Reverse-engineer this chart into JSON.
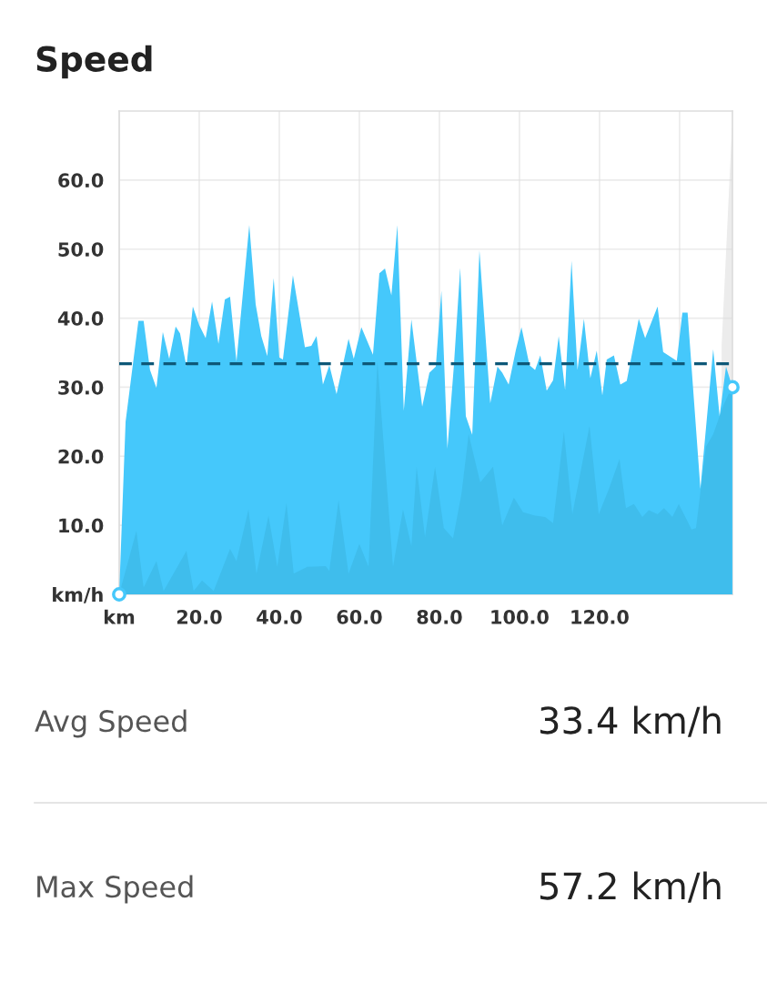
{
  "chart_data": {
    "type": "area",
    "title": "Speed",
    "xlim": [
      0,
      153.2
    ],
    "ylim": [
      0,
      70
    ],
    "xticks": [
      {
        "value": 0,
        "label": "km"
      },
      {
        "value": 20,
        "label": "20.0"
      },
      {
        "value": 40,
        "label": "40.0"
      },
      {
        "value": 60,
        "label": "60.0"
      },
      {
        "value": 80,
        "label": "80.0"
      },
      {
        "value": 100,
        "label": "100.0"
      },
      {
        "value": 120,
        "label": "120.0"
      },
      {
        "value": 140,
        "label": null
      }
    ],
    "yticks": [
      {
        "value": 0,
        "label": "km/h"
      },
      {
        "value": 10,
        "label": "10.0"
      },
      {
        "value": 20,
        "label": "20.0"
      },
      {
        "value": 30,
        "label": "30.0"
      },
      {
        "value": 40,
        "label": "40.0"
      },
      {
        "value": 50,
        "label": "50.0"
      },
      {
        "value": 60,
        "label": "60.0"
      }
    ],
    "grid": true,
    "legend": false,
    "series": [
      {
        "color": "#ececec",
        "x": [
          150.5,
          153.2
        ],
        "values": [
          36,
          69
        ]
      },
      {
        "color": "#45c8fb",
        "x": [
          0,
          1.6,
          4.8,
          6.1,
          7.7,
          9.3,
          10.9,
          12.5,
          14.1,
          15.2,
          16.8,
          18.4,
          20.0,
          21.6,
          23.2,
          24.8,
          26.4,
          27.7,
          29.3,
          32.5,
          34.1,
          35.5,
          37.0,
          38.6,
          40.0,
          40.9,
          43.4,
          46.4,
          48.0,
          49.3,
          50.9,
          52.5,
          54.3,
          57.3,
          58.6,
          60.5,
          63.4,
          65.0,
          66.4,
          68.0,
          69.5,
          71.1,
          73.0,
          75.7,
          77.5,
          79.1,
          80.5,
          82.0,
          83.6,
          85.2,
          86.6,
          88.2,
          90.0,
          92.7,
          94.5,
          95.7,
          97.3,
          99.1,
          100.5,
          102.5,
          103.9,
          105.2,
          106.8,
          108.4,
          109.8,
          111.4,
          113.0,
          114.5,
          116.1,
          117.7,
          119.3,
          120.7,
          121.8,
          123.6,
          125.2,
          126.8,
          129.8,
          131.4,
          134.5,
          135.9,
          139.3,
          140.7,
          142.0,
          145.2,
          148.4,
          150.0,
          151.6,
          153.2
        ],
        "values": [
          0,
          25,
          39.6,
          39.6,
          32.5,
          29.9,
          38,
          34.1,
          38.8,
          37.8,
          33,
          41.7,
          39,
          37.1,
          42.4,
          36.3,
          42.7,
          43.1,
          33.7,
          53.5,
          42,
          37.4,
          34.5,
          45.8,
          34.3,
          34,
          46.2,
          35.8,
          36,
          37.4,
          30.4,
          33.2,
          29,
          37,
          34.1,
          38.7,
          34.7,
          46.5,
          47.2,
          43.3,
          53.5,
          26.6,
          39.8,
          27.2,
          32.1,
          33,
          44,
          21.1,
          33,
          47.3,
          25.8,
          23.1,
          49.8,
          27.7,
          33,
          32.1,
          30.4,
          35.4,
          38.7,
          33.2,
          32.5,
          34.6,
          29.5,
          31,
          37.4,
          29.6,
          48.3,
          32.5,
          39.9,
          31.3,
          35.3,
          28.8,
          34,
          34.6,
          30.4,
          30.9,
          39.9,
          37.1,
          41.7,
          35.1,
          33.8,
          40.8,
          40.8,
          15.3,
          35.5,
          25.8,
          33,
          30
        ]
      },
      {
        "color": "#3fbdec",
        "x": [
          0,
          4.3,
          6.1,
          9.3,
          11.1,
          16.8,
          18.6,
          20.7,
          23.6,
          27.7,
          29.3,
          32.3,
          34.3,
          37.3,
          39.5,
          41.8,
          43.6,
          47.0,
          51.6,
          52.5,
          54.8,
          57.3,
          60.0,
          62.3,
          64.5,
          68.4,
          70.9,
          73.0,
          74.3,
          76.4,
          78.9,
          81.1,
          83.4,
          85.5,
          87.3,
          90.2,
          93.4,
          95.7,
          98.6,
          100.9,
          103.9,
          106.4,
          108.4,
          111.1,
          113.2,
          117.5,
          119.8,
          122.3,
          125.0,
          126.6,
          128.6,
          130.7,
          132.3,
          134.5,
          136.1,
          138.2,
          139.8,
          143.0,
          144.1,
          146.6,
          148.4,
          150.9,
          153.0
        ],
        "values": [
          0,
          9.2,
          1,
          4.8,
          0.5,
          6.3,
          0.5,
          2,
          0.5,
          6.6,
          4.8,
          12.3,
          3,
          11.4,
          4,
          13.2,
          3,
          4,
          4.1,
          3.4,
          13.6,
          3,
          7.3,
          4,
          33.8,
          4,
          12.3,
          7,
          18.5,
          8.3,
          18.5,
          9.6,
          8.1,
          14.5,
          23.2,
          16.2,
          18.5,
          10,
          14,
          11.9,
          11.4,
          11.2,
          10.3,
          23.6,
          11.6,
          24.4,
          11.6,
          15.2,
          19.6,
          12.5,
          13.1,
          11.2,
          12.2,
          11.6,
          12.5,
          11.2,
          13.1,
          9.4,
          9.6,
          21.4,
          23.2,
          27.3,
          30
        ]
      },
      {
        "type": "scatter",
        "color": "#45c8fb",
        "marker": "circle",
        "x": [
          0,
          153.2
        ],
        "values": [
          0,
          30
        ]
      }
    ],
    "ref_lines": [
      {
        "axis": "y",
        "value": 33.4,
        "label": null,
        "color": "#0e5878",
        "line_style": "dashed"
      }
    ],
    "annotations": [
      "Avg Speed",
      "33.4 km/h",
      "Max Speed",
      "57.2 km/h"
    ]
  }
}
